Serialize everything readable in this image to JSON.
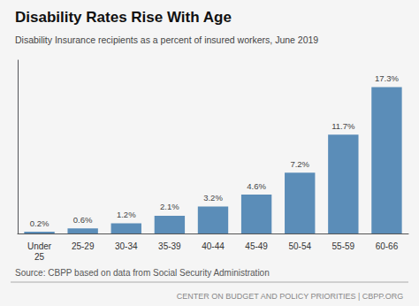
{
  "chart_data": {
    "type": "bar",
    "title": "Disability Rates Rise With Age",
    "subtitle": "Disability Insurance recipients as a percent of insured workers, June 2019",
    "categories": [
      "Under\n25",
      "25-29",
      "30-34",
      "35-39",
      "40-44",
      "45-49",
      "50-54",
      "55-59",
      "60-66"
    ],
    "values": [
      0.2,
      0.6,
      1.2,
      2.1,
      3.2,
      4.6,
      7.2,
      11.7,
      17.3
    ],
    "value_labels": [
      "0.2%",
      "0.6%",
      "1.2%",
      "2.1%",
      "3.2%",
      "4.6%",
      "7.2%",
      "11.7%",
      "17.3%"
    ],
    "color": "#5b8db8",
    "ylim": [
      0,
      20.5
    ],
    "yticks": [],
    "grid": false,
    "data_labels": true,
    "tick_labels": "x",
    "source": "Source: CBPP based on data from Social Security Administration",
    "footer": "CENTER ON BUDGET AND POLICY PRIORITIES | CBPP.ORG"
  }
}
